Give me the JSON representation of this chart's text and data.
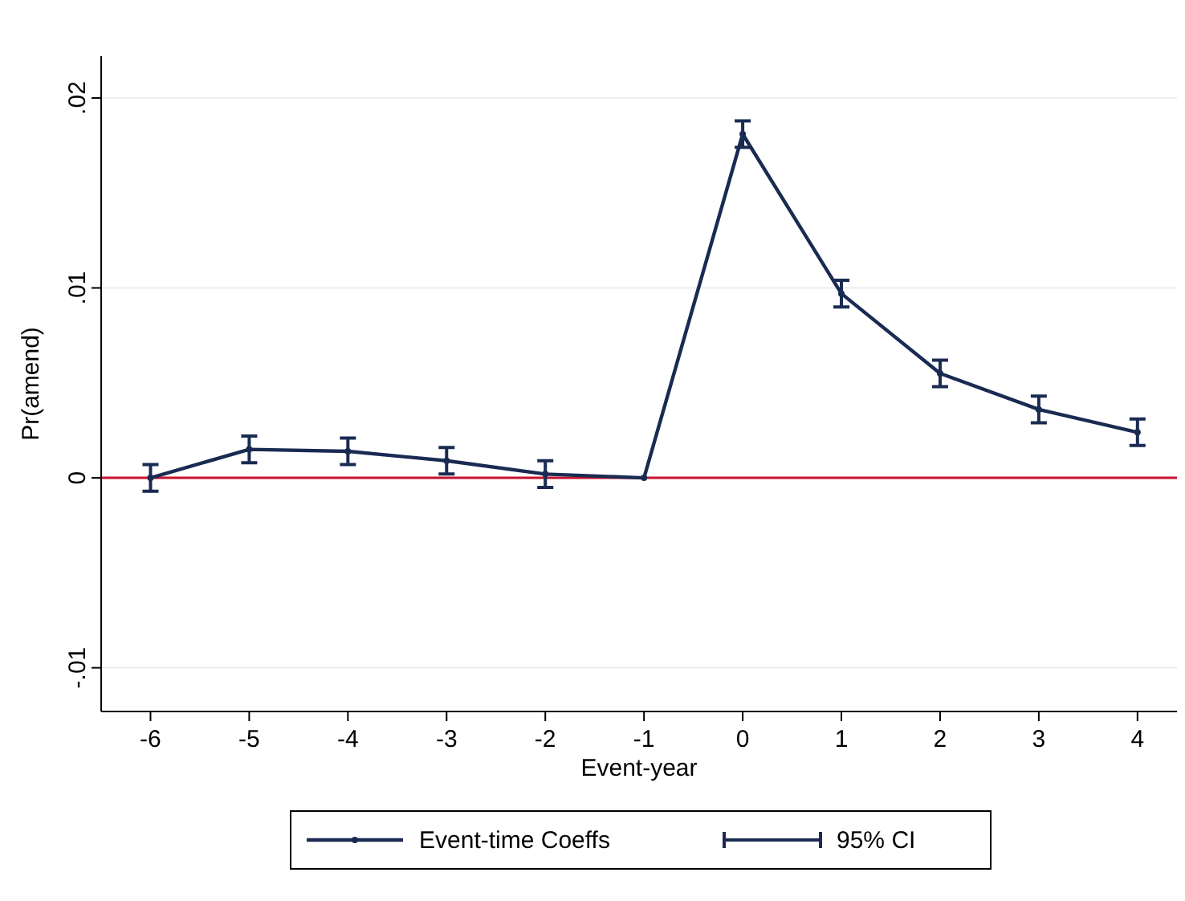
{
  "chart_data": {
    "type": "line",
    "xlabel": "Event-year",
    "ylabel": "Pr(amend)",
    "x": [
      -6,
      -5,
      -4,
      -3,
      -2,
      -1,
      0,
      1,
      2,
      3,
      4
    ],
    "series": [
      {
        "name": "Event-time Coeffs",
        "color": "#1a2b52",
        "marker": "circle",
        "values": [
          0,
          0.0015,
          0.0014,
          0.0009,
          0.0002,
          0,
          0.0181,
          0.0097,
          0.0055,
          0.0036,
          0.0024
        ],
        "errors": [
          0.0007,
          0.0007,
          0.0007,
          0.0007,
          0.0007,
          null,
          0.0007,
          0.0007,
          0.0007,
          0.0007,
          0.0007
        ]
      }
    ],
    "annotations": [
      "95% CI"
    ],
    "xlim": [
      -6.5,
      4.4
    ],
    "xticks": [
      -6,
      -5,
      -4,
      -3,
      -2,
      -1,
      0,
      1,
      2,
      3,
      4
    ],
    "ylim": [
      -0.0123,
      0.0222
    ],
    "yticks": [
      {
        "value": -0.01,
        "label": "-.01"
      },
      {
        "value": 0,
        "label": "0"
      },
      {
        "value": 0.01,
        "label": ".01"
      },
      {
        "value": 0.02,
        "label": ".02"
      }
    ],
    "grid": "y",
    "legend": "bottom",
    "ref_lines": [
      {
        "axis": "y",
        "value": 0,
        "color": "#c8102e"
      }
    ]
  }
}
